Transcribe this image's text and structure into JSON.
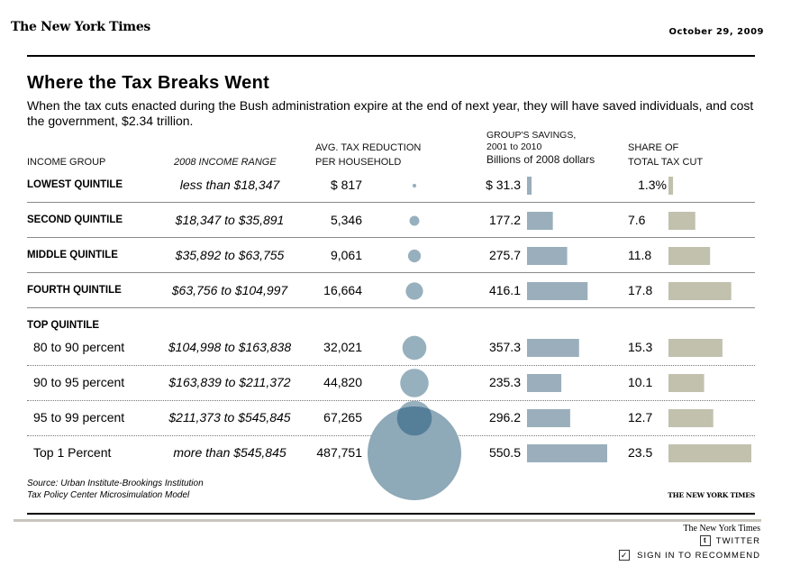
{
  "header": {
    "masthead": "The New York Times",
    "date": "October 29, 2009"
  },
  "chart_data": {
    "type": "table",
    "title": "Where the Tax Breaks Went",
    "subtitle": "When the tax cuts enacted during the Bush administration expire at the end of next year, they will have saved individuals, and cost the government, $2.34 trillion.",
    "columns": {
      "group": "INCOME GROUP",
      "range": "2008 INCOME RANGE",
      "avg_line1": "AVG. TAX REDUCTION",
      "avg_line2": "PER HOUSEHOLD",
      "savings_line1": "GROUP'S SAVINGS,",
      "savings_line2": "2001 to 2010",
      "savings_line3": "Billions of 2008 dollars",
      "share_line1": "SHARE OF",
      "share_line2": "TOTAL TAX CUT"
    },
    "section_label": "TOP QUINTILE",
    "rows": [
      {
        "group": "LOWEST QUINTILE",
        "range": "less than $18,347",
        "avg_label": "$ 817",
        "avg": 817,
        "savings_label": "$ 31.3",
        "savings": 31.3,
        "share_label": "1.3%",
        "share": 1.3
      },
      {
        "group": "SECOND QUINTILE",
        "range": "$18,347 to $35,891",
        "avg_label": "5,346",
        "avg": 5346,
        "savings_label": "177.2",
        "savings": 177.2,
        "share_label": "7.6",
        "share": 7.6
      },
      {
        "group": "MIDDLE QUINTILE",
        "range": "$35,892 to $63,755",
        "avg_label": "9,061",
        "avg": 9061,
        "savings_label": "275.7",
        "savings": 275.7,
        "share_label": "11.8",
        "share": 11.8
      },
      {
        "group": "FOURTH QUINTILE",
        "range": "$63,756 to $104,997",
        "avg_label": "16,664",
        "avg": 16664,
        "savings_label": "416.1",
        "savings": 416.1,
        "share_label": "17.8",
        "share": 17.8
      },
      {
        "group": "80 to 90 percent",
        "range": "$104,998 to $163,838",
        "avg_label": "32,021",
        "avg": 32021,
        "savings_label": "357.3",
        "savings": 357.3,
        "share_label": "15.3",
        "share": 15.3
      },
      {
        "group": "90 to 95 percent",
        "range": "$163,839 to $211,372",
        "avg_label": "44,820",
        "avg": 44820,
        "savings_label": "235.3",
        "savings": 235.3,
        "share_label": "10.1",
        "share": 10.1
      },
      {
        "group": "95 to 99 percent",
        "range": "$211,373 to $545,845",
        "avg_label": "67,265",
        "avg": 67265,
        "savings_label": "296.2",
        "savings": 296.2,
        "share_label": "12.7",
        "share": 12.7
      },
      {
        "group": "Top 1 Percent",
        "range": "more than $545,845",
        "avg_label": "487,751",
        "avg": 487751,
        "savings_label": "550.5",
        "savings": 550.5,
        "share_label": "23.5",
        "share": 23.5
      }
    ],
    "source_line1": "Source: Urban Institute-Brookings Institution",
    "source_line2": "Tax Policy Center Microsimulation Model",
    "credit": "THE NEW YORK TIMES",
    "colors": {
      "circle": "#8ea9b8",
      "circle_overlap": "#557e99",
      "savings_bar": "#9aafbb",
      "share_bar": "#c2c1ae"
    }
  },
  "footer": {
    "nyt_label": "The New York Times",
    "twitter_icon": "twitter-icon",
    "twitter_label": "TWITTER",
    "recommend_icon": "checkbox-icon",
    "recommend_label": "SIGN IN TO RECOMMEND"
  }
}
